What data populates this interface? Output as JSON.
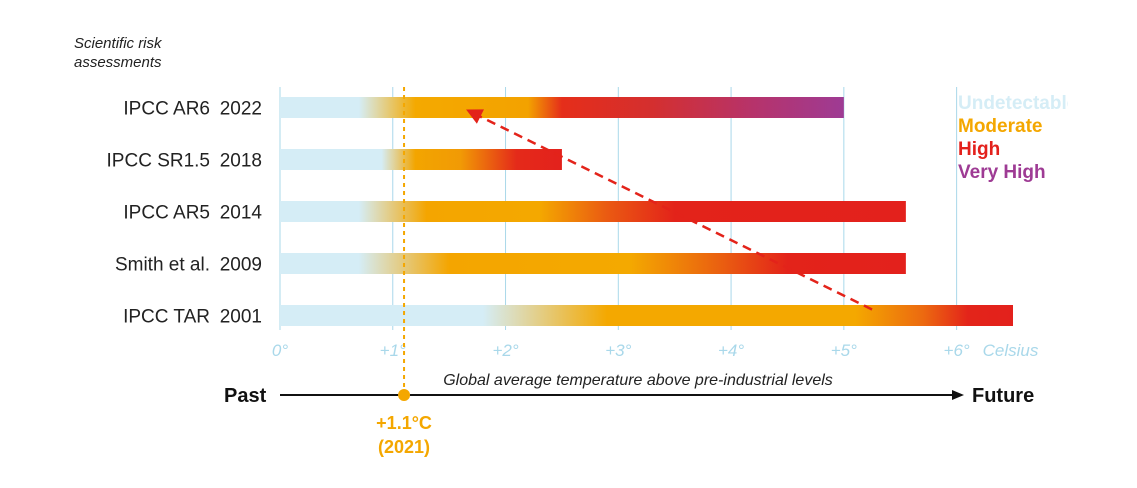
{
  "chart_data": {
    "type": "bar",
    "title_small": "Scientific risk assessments",
    "categories": [
      {
        "label": "IPCC AR6",
        "year": "2022"
      },
      {
        "label": "IPCC SR1.5",
        "year": "2018"
      },
      {
        "label": "IPCC AR5",
        "year": "2014"
      },
      {
        "label": "Smith et al.",
        "year": "2009"
      },
      {
        "label": "IPCC TAR",
        "year": "2001"
      }
    ],
    "xlim": [
      0,
      6.5
    ],
    "xticks": [
      {
        "value": 0,
        "label": "0°"
      },
      {
        "value": 1,
        "label": "+1°"
      },
      {
        "value": 2,
        "label": "+2°"
      },
      {
        "value": 3,
        "label": "+3°"
      },
      {
        "value": 4,
        "label": "+4°"
      },
      {
        "value": 5,
        "label": "+5°"
      },
      {
        "value": 6,
        "label": "+6°"
      }
    ],
    "x_unit": "Celsius",
    "xlabel": "Global average temperature above pre-industrial levels",
    "bars": [
      {
        "end": 5.0,
        "stops": [
          [
            0,
            "#d5edf6"
          ],
          [
            0.7,
            "#d5edf6"
          ],
          [
            1.2,
            "#f4a900"
          ],
          [
            2.2,
            "#f3a200"
          ],
          [
            2.5,
            "#e52e1a"
          ],
          [
            3.3,
            "#d42f2f"
          ],
          [
            4.2,
            "#b6336b"
          ],
          [
            5.0,
            "#9e3b94"
          ]
        ]
      },
      {
        "end": 2.5,
        "stops": [
          [
            0,
            "#d5edf6"
          ],
          [
            0.9,
            "#d5edf6"
          ],
          [
            1.2,
            "#f3a500"
          ],
          [
            1.6,
            "#f19a05"
          ],
          [
            2.1,
            "#e42a1a"
          ],
          [
            2.5,
            "#e3211c"
          ]
        ]
      },
      {
        "end": 5.55,
        "stops": [
          [
            0,
            "#d5edf6"
          ],
          [
            0.7,
            "#d5edf6"
          ],
          [
            1.3,
            "#f4a500"
          ],
          [
            2.3,
            "#f4a800"
          ],
          [
            2.9,
            "#ea5a12"
          ],
          [
            3.5,
            "#e3231a"
          ],
          [
            5.55,
            "#e3211c"
          ]
        ]
      },
      {
        "end": 5.55,
        "stops": [
          [
            0,
            "#d5edf6"
          ],
          [
            0.7,
            "#d5edf6"
          ],
          [
            1.5,
            "#f4a500"
          ],
          [
            3.1,
            "#f4a900"
          ],
          [
            3.9,
            "#ea6010"
          ],
          [
            4.5,
            "#e3231a"
          ],
          [
            5.55,
            "#e3211c"
          ]
        ]
      },
      {
        "end": 6.5,
        "stops": [
          [
            0,
            "#d5edf6"
          ],
          [
            1.8,
            "#d5edf6"
          ],
          [
            2.9,
            "#f4a800"
          ],
          [
            5.1,
            "#f4a800"
          ],
          [
            5.7,
            "#ec6a10"
          ],
          [
            6.1,
            "#e3241a"
          ],
          [
            6.5,
            "#e3211c"
          ]
        ]
      }
    ],
    "current_warming": {
      "value": 1.1,
      "label_line1": "+1.1°C",
      "label_line2": "(2021)",
      "color": "#f4a700"
    },
    "trend_arrow": {
      "from": {
        "x": 5.25,
        "bar": 4
      },
      "to": {
        "x": 1.65,
        "bar": 0
      },
      "color": "#e3231a"
    },
    "legend": [
      {
        "label": "Undetectable",
        "color": "#d5edf6"
      },
      {
        "label": "Moderate",
        "color": "#f4a700"
      },
      {
        "label": "High",
        "color": "#e3211c"
      },
      {
        "label": "Very High",
        "color": "#9e3b94"
      }
    ],
    "timeline": {
      "left_label": "Past",
      "right_label": "Future"
    },
    "colors": {
      "grid": "#a9d8ea",
      "tick_label": "#a9d8ea",
      "text": "#222222"
    }
  }
}
